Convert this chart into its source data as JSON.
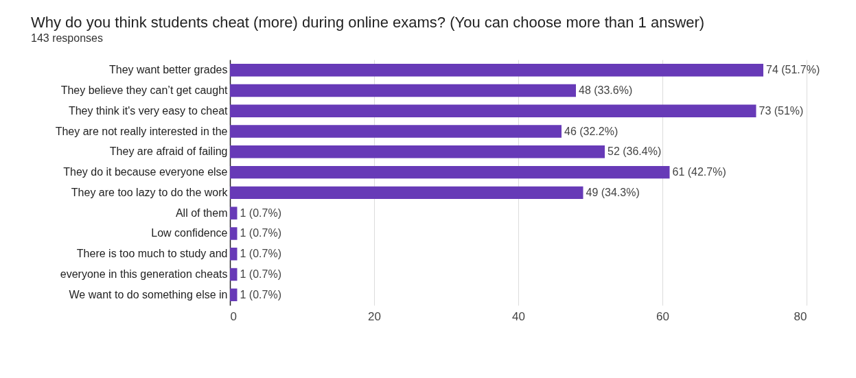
{
  "chart_data": {
    "type": "bar",
    "orientation": "horizontal",
    "title": "Why do you think students cheat (more) during online exams? (You can choose more than 1 answer)",
    "subtitle": "143 responses",
    "categories": [
      "They want better grades",
      "They believe they can’t get caught",
      "They think it's very easy to cheat",
      "They are not really interested in the",
      "They are afraid of failing",
      "They do it because everyone else",
      "They are too lazy to do the work",
      "All of them",
      "Low confidence",
      "There is too much to study and",
      "everyone in this generation cheats",
      "We want to do something else in"
    ],
    "values": [
      74,
      48,
      73,
      46,
      52,
      61,
      49,
      1,
      1,
      1,
      1,
      1
    ],
    "value_labels": [
      "74 (51.7%)",
      "48 (33.6%)",
      "73 (51%)",
      "46 (32.2%)",
      "52 (36.4%)",
      "61 (42.7%)",
      "49 (34.3%)",
      "1 (0.7%)",
      "1 (0.7%)",
      "1 (0.7%)",
      "1 (0.7%)",
      "1 (0.7%)"
    ],
    "color": "#673ab7",
    "xlim": [
      0,
      80
    ],
    "xticks": [
      0,
      20,
      40,
      60,
      80
    ],
    "grid": "x"
  }
}
